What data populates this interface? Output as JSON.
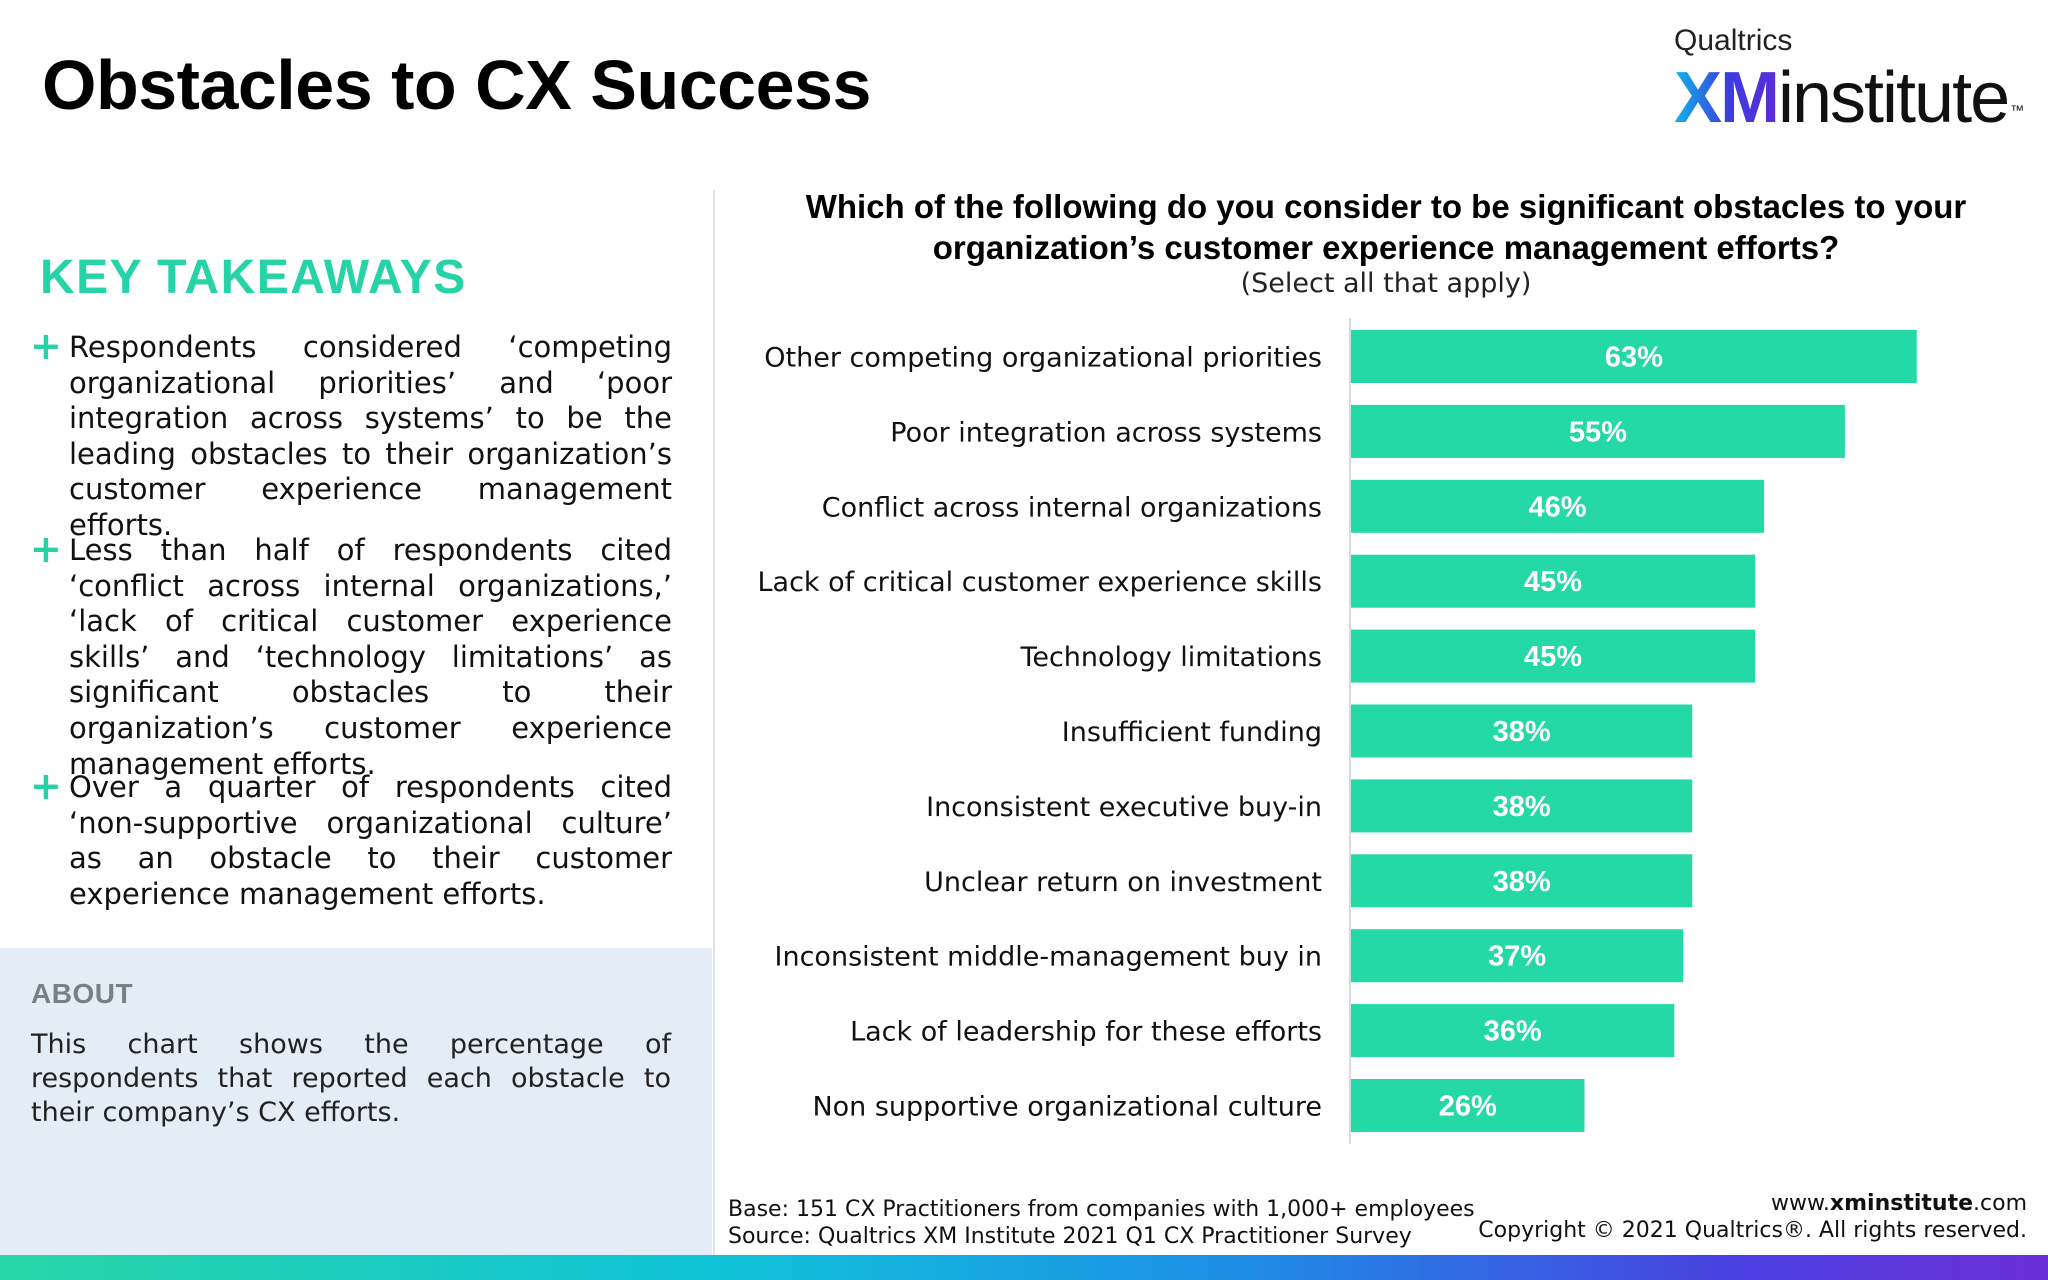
{
  "page": {
    "title": "Obstacles to CX Success"
  },
  "logo": {
    "brand": "Qualtrics",
    "xm": "XM",
    "word": "institute",
    "tm": "™"
  },
  "takeaways": {
    "heading": "KEY TAKEAWAYS",
    "items": [
      "Respondents considered ‘competing organizational priorities’ and ‘poor integration across systems’ to be the leading obstacles to their organization’s customer experience management efforts.",
      "Less than half of respondents cited ‘conflict across internal organizations,’ ‘lack of critical customer experience skills’ and ‘technology limitations’ as significant obstacles to their organization’s customer experience management efforts.",
      "Over a quarter of respondents cited ‘non-supportive organizational culture’ as an obstacle to their customer experience management efforts."
    ]
  },
  "about": {
    "title": "ABOUT",
    "text": "This chart shows the percentage of respondents that reported each obstacle to their company’s CX efforts."
  },
  "question": {
    "title": "Which of the following do you consider to be significant obstacles to your organization’s customer experience management efforts?",
    "subtitle": "(Select all that apply)"
  },
  "chart_data": {
    "type": "bar",
    "orientation": "horizontal",
    "title": "Which of the following do you consider to be significant obstacles to your organization’s customer experience management efforts?",
    "subtitle": "(Select all that apply)",
    "categories": [
      "Other competing organizational priorities",
      "Poor integration across systems",
      "Conflict across internal organizations",
      "Lack of critical customer experience skills",
      "Technology limitations",
      "Insufficient funding",
      "Inconsistent executive buy-in",
      "Unclear return on investment",
      "Inconsistent middle-management buy in",
      "Lack of leadership for these efforts",
      "Non supportive organizational culture"
    ],
    "values": [
      63,
      55,
      46,
      45,
      45,
      38,
      38,
      38,
      37,
      36,
      26
    ],
    "labels": [
      "63%",
      "55%",
      "46%",
      "45%",
      "45%",
      "38%",
      "38%",
      "38%",
      "37%",
      "36%",
      "26%"
    ],
    "xlim": [
      0,
      100
    ],
    "grid": false,
    "bar_color": "#25d9a6",
    "label_color": "#ffffff"
  },
  "footer": {
    "base": "Base: 151 CX Practitioners from companies with 1,000+ employees",
    "source": "Source: Qualtrics XM Institute 2021 Q1 CX Practitioner Survey",
    "website_prefix": "www.",
    "website_bold": "xminstitute",
    "website_suffix": ".com",
    "copyright": "Copyright © 2021 Qualtrics®. All rights reserved."
  },
  "colors": {
    "accent": "#25d3a6",
    "about_bg": "#e4edf6"
  }
}
